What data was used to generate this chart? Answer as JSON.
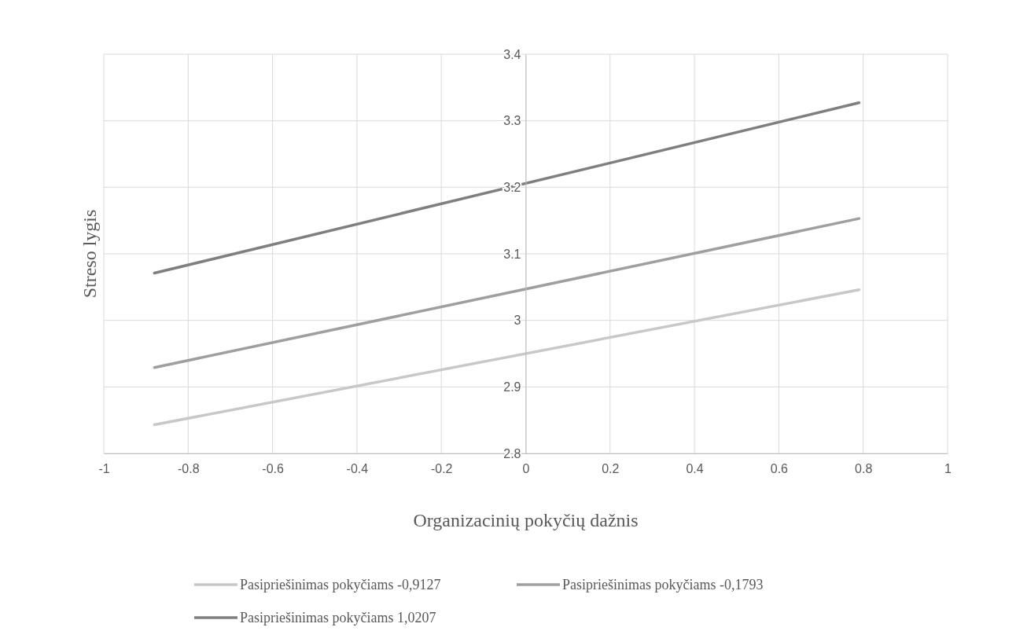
{
  "chart_data": {
    "type": "line",
    "xlabel": "Organizacinių pokyčių dažnis",
    "ylabel": "Streso lygis",
    "xlim": [
      -1,
      1
    ],
    "xticks": [
      -1,
      -0.8,
      -0.6,
      -0.4,
      -0.2,
      0,
      0.2,
      0.4,
      0.6,
      0.8,
      1
    ],
    "ylim": [
      2.8,
      3.4
    ],
    "yticks": [
      2.8,
      2.9,
      3,
      3.1,
      3.2,
      3.3,
      3.4
    ],
    "grid": true,
    "legend": "bottom",
    "marker": "none",
    "line_style": "solid",
    "x": [
      -0.88,
      0.79
    ],
    "series": [
      {
        "name": "Pasipriešinimas pokyčiams -0,9127",
        "color": "#c8c8c8",
        "values": [
          2.843,
          3.046
        ]
      },
      {
        "name": "Pasipriešinimas pokyčiams -0,1793",
        "color": "#9f9f9f",
        "values": [
          2.929,
          3.153
        ]
      },
      {
        "name": "Pasipriešinimas pokyčiams 1,0207",
        "color": "#7f7f7f",
        "values": [
          3.071,
          3.327
        ]
      }
    ]
  }
}
